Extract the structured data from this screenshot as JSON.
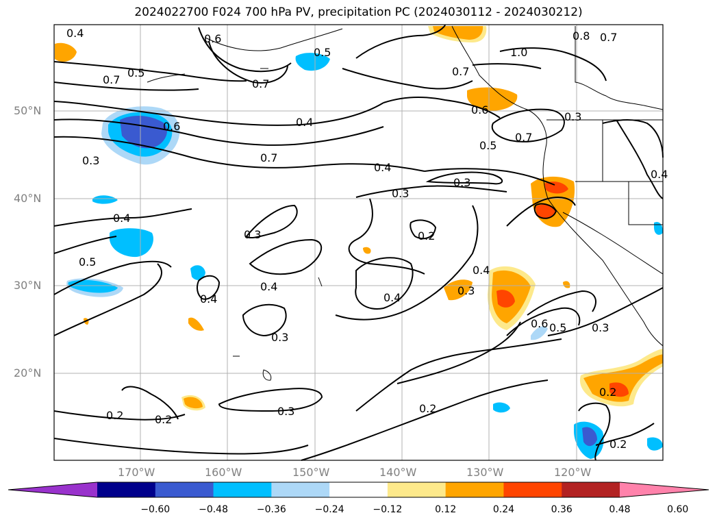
{
  "title": "2024022700 F024 700 hPa PV, precipitation PC (2024030112 - 2024030212)",
  "lat_labels": [
    "50°N",
    "40°N",
    "30°N",
    "20°N"
  ],
  "lon_labels": [
    "170°W",
    "160°W",
    "150°W",
    "140°W",
    "130°W",
    "120°W"
  ],
  "contour_labels": [
    "0.4",
    "0.6",
    "0.5",
    "0.7",
    "0.5",
    "0.7",
    "1.0",
    "0.8",
    "0.7",
    "0.6",
    "0.5",
    "0.7",
    "0.4",
    "0.6",
    "0.3",
    "0.7",
    "0.4",
    "0.3",
    "0.3",
    "0.3",
    "0.2",
    "0.4",
    "0.3",
    "0.4",
    "0.5",
    "0.4",
    "0.4",
    "0.3",
    "0.4",
    "0.6",
    "0.5",
    "0.3",
    "0.2",
    "0.2",
    "0.3",
    "0.2",
    "0.2",
    "0.2",
    "0.3",
    "0.4",
    "0.7"
  ],
  "colorbar": {
    "ticks": [
      "−0.60",
      "−0.48",
      "−0.36",
      "−0.24",
      "−0.12",
      "0.12",
      "0.24",
      "0.36",
      "0.48",
      "0.60"
    ],
    "colors": [
      "#9932cc",
      "#00008b",
      "#3a5ad0",
      "#00bfff",
      "#add8f7",
      "#ffffff",
      "#fde98b",
      "#ffa500",
      "#ff4500",
      "#b22222",
      "#ff82ab"
    ]
  }
}
